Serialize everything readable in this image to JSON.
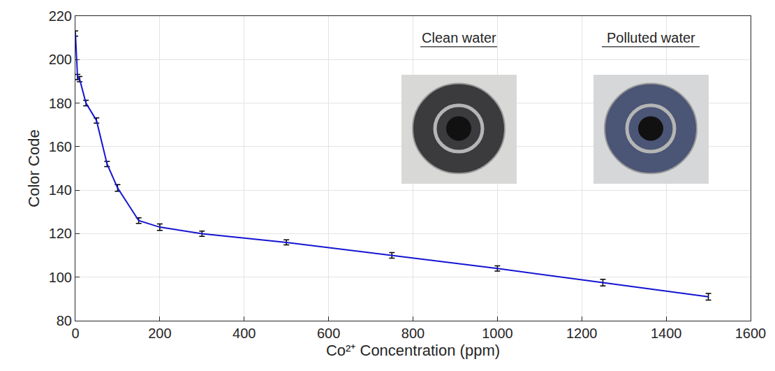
{
  "chart_data": {
    "type": "line",
    "x": [
      0,
      5,
      10,
      25,
      50,
      75,
      100,
      150,
      200,
      300,
      500,
      750,
      1000,
      1250,
      1500
    ],
    "values": [
      212,
      192,
      191,
      180,
      172,
      152,
      141,
      126,
      123,
      120,
      116,
      110,
      104,
      97.5,
      91
    ],
    "errors": [
      1.2,
      1.2,
      1.2,
      1.3,
      1.2,
      1.2,
      1.5,
      1.3,
      1.5,
      1.2,
      1.2,
      1.3,
      1.2,
      1.5,
      1.5
    ],
    "color": "#1414d2",
    "xlabel": "Co²⁺ Concentration (ppm)",
    "ylabel": "Color Code",
    "xlim": [
      0,
      1600
    ],
    "xticks": [
      0,
      200,
      400,
      600,
      800,
      1000,
      1200,
      1400,
      1600
    ],
    "ylim": [
      80,
      220
    ],
    "yticks": [
      80,
      100,
      120,
      140,
      160,
      180,
      200,
      220
    ],
    "grid": true,
    "annotations": [
      "Clean water",
      "Polluted water"
    ]
  }
}
